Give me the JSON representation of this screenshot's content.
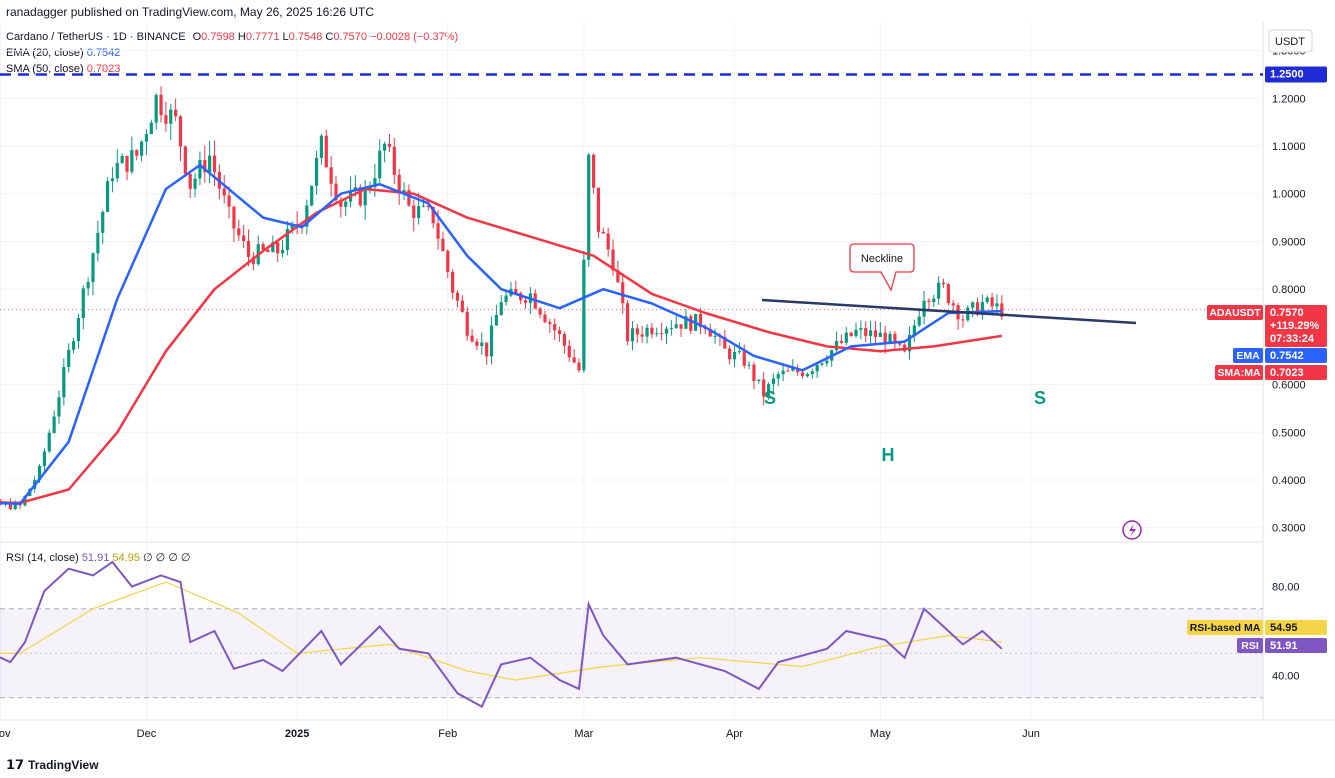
{
  "header": {
    "published": "ranadagger published on TradingView.com, May 26, 2025 16:26 UTC"
  },
  "legend": {
    "symbol": "Cardano / TetherUS · 1D · BINANCE",
    "o_label": "O",
    "o": "0.7598",
    "h_label": "H",
    "h": "0.7771",
    "l_label": "L",
    "l": "0.7548",
    "c_label": "C",
    "c": "0.7570",
    "change": "−0.0028 (−0.37%)",
    "ema_label": "EMA (20, close)",
    "ema_value": "0.7542",
    "sma_label": "SMA (50, close)",
    "sma_value": "0.7023",
    "rsi_label": "RSI (14, close)",
    "rsi_value": "51.91",
    "rsi_ma_value": "54.95",
    "rsi_extra": "∅ ∅ ∅ ∅"
  },
  "price_axis": {
    "currency": "USDT",
    "ticks": [
      "1.3000",
      "1.2000",
      "1.1000",
      "1.0000",
      "0.9000",
      "0.8000",
      "0.6000",
      "0.5000",
      "0.4000",
      "0.3000"
    ],
    "resistance_label": "1.2500",
    "badges": {
      "symbol": "ADAUSDT",
      "price": "0.7570",
      "change": "+119.29%",
      "countdown": "07:33:24",
      "ema_name": "EMA",
      "ema_value": "0.7542",
      "sma_name": "SMA:MA",
      "sma_value": "0.7023"
    }
  },
  "rsi_axis": {
    "ticks": [
      "80.00",
      "40.00"
    ],
    "ma_name": "RSI-based MA",
    "ma_value": "54.95",
    "rsi_name": "RSI",
    "rsi_value": "51.91"
  },
  "time_axis": [
    "Nov",
    "Dec",
    "2025",
    "Feb",
    "Mar",
    "Apr",
    "May",
    "Jun"
  ],
  "annotations": {
    "neckline": "Neckline",
    "left_shoulder": "S",
    "head": "H",
    "right_shoulder": "S"
  },
  "branding": "TradingView",
  "colors": {
    "up": "#089981",
    "down": "#f23645",
    "ema": "#2962ff",
    "sma": "#f23645",
    "rsi": "#7e57c2",
    "rsi_ma": "#f5d547",
    "neckline": "#2a3a66",
    "resistance": "#1f2bd6"
  },
  "chart_data": {
    "type": "candlestick",
    "title": "Cardano / TetherUS · 1D · BINANCE",
    "ylim": [
      0.27,
      1.36
    ],
    "x_ticks": [
      "Nov",
      "Dec",
      "2025",
      "Feb",
      "Mar",
      "Apr",
      "May",
      "Jun"
    ],
    "resistance_level": 1.25,
    "close_path": [
      {
        "date": "2024-10-20",
        "close": 0.355
      },
      {
        "date": "2024-10-28",
        "close": 0.35
      },
      {
        "date": "2024-11-05",
        "close": 0.345
      },
      {
        "date": "2024-11-09",
        "close": 0.42
      },
      {
        "date": "2024-11-13",
        "close": 0.58
      },
      {
        "date": "2024-11-17",
        "close": 0.75
      },
      {
        "date": "2024-11-21",
        "close": 0.92
      },
      {
        "date": "2024-11-24",
        "close": 1.05
      },
      {
        "date": "2024-11-29",
        "close": 1.08
      },
      {
        "date": "2024-12-03",
        "close": 1.2
      },
      {
        "date": "2024-12-07",
        "close": 1.15
      },
      {
        "date": "2024-12-10",
        "close": 1.02
      },
      {
        "date": "2024-12-14",
        "close": 1.08
      },
      {
        "date": "2024-12-18",
        "close": 0.95
      },
      {
        "date": "2024-12-22",
        "close": 0.87
      },
      {
        "date": "2024-12-28",
        "close": 0.88
      },
      {
        "date": "2025-01-02",
        "close": 0.95
      },
      {
        "date": "2025-01-06",
        "close": 1.1
      },
      {
        "date": "2025-01-10",
        "close": 0.98
      },
      {
        "date": "2025-01-15",
        "close": 1.0
      },
      {
        "date": "2025-01-19",
        "close": 1.1
      },
      {
        "date": "2025-01-24",
        "close": 0.97
      },
      {
        "date": "2025-01-29",
        "close": 0.95
      },
      {
        "date": "2025-02-02",
        "close": 0.8
      },
      {
        "date": "2025-02-05",
        "close": 0.72
      },
      {
        "date": "2025-02-09",
        "close": 0.67
      },
      {
        "date": "2025-02-12",
        "close": 0.78
      },
      {
        "date": "2025-02-18",
        "close": 0.79
      },
      {
        "date": "2025-02-24",
        "close": 0.7
      },
      {
        "date": "2025-02-28",
        "close": 0.63
      },
      {
        "date": "2025-03-02",
        "close": 1.07
      },
      {
        "date": "2025-03-04",
        "close": 0.93
      },
      {
        "date": "2025-03-07",
        "close": 0.86
      },
      {
        "date": "2025-03-10",
        "close": 0.7
      },
      {
        "date": "2025-03-15",
        "close": 0.72
      },
      {
        "date": "2025-03-20",
        "close": 0.73
      },
      {
        "date": "2025-03-26",
        "close": 0.73
      },
      {
        "date": "2025-03-30",
        "close": 0.67
      },
      {
        "date": "2025-04-03",
        "close": 0.65
      },
      {
        "date": "2025-04-07",
        "close": 0.58
      },
      {
        "date": "2025-04-10",
        "close": 0.62
      },
      {
        "date": "2025-04-16",
        "close": 0.63
      },
      {
        "date": "2025-04-22",
        "close": 0.68
      },
      {
        "date": "2025-04-26",
        "close": 0.71
      },
      {
        "date": "2025-05-02",
        "close": 0.7
      },
      {
        "date": "2025-05-06",
        "close": 0.66
      },
      {
        "date": "2025-05-10",
        "close": 0.79
      },
      {
        "date": "2025-05-14",
        "close": 0.8
      },
      {
        "date": "2025-05-18",
        "close": 0.74
      },
      {
        "date": "2025-05-22",
        "close": 0.77
      },
      {
        "date": "2025-05-26",
        "close": 0.757
      }
    ],
    "ema_path": [
      {
        "date": "2024-10-20",
        "value": 0.355
      },
      {
        "date": "2024-11-05",
        "value": 0.35
      },
      {
        "date": "2024-11-15",
        "value": 0.48
      },
      {
        "date": "2024-11-25",
        "value": 0.78
      },
      {
        "date": "2024-12-05",
        "value": 1.01
      },
      {
        "date": "2024-12-12",
        "value": 1.06
      },
      {
        "date": "2024-12-25",
        "value": 0.95
      },
      {
        "date": "2025-01-02",
        "value": 0.93
      },
      {
        "date": "2025-01-10",
        "value": 1.0
      },
      {
        "date": "2025-01-18",
        "value": 1.02
      },
      {
        "date": "2025-01-28",
        "value": 0.98
      },
      {
        "date": "2025-02-05",
        "value": 0.87
      },
      {
        "date": "2025-02-12",
        "value": 0.8
      },
      {
        "date": "2025-02-24",
        "value": 0.76
      },
      {
        "date": "2025-03-05",
        "value": 0.8
      },
      {
        "date": "2025-03-15",
        "value": 0.77
      },
      {
        "date": "2025-03-26",
        "value": 0.72
      },
      {
        "date": "2025-04-05",
        "value": 0.66
      },
      {
        "date": "2025-04-15",
        "value": 0.63
      },
      {
        "date": "2025-04-25",
        "value": 0.68
      },
      {
        "date": "2025-05-06",
        "value": 0.69
      },
      {
        "date": "2025-05-15",
        "value": 0.75
      },
      {
        "date": "2025-05-26",
        "value": 0.754
      }
    ],
    "sma_path": [
      {
        "date": "2024-10-20",
        "value": 0.355
      },
      {
        "date": "2024-11-05",
        "value": 0.352
      },
      {
        "date": "2024-11-15",
        "value": 0.38
      },
      {
        "date": "2024-11-25",
        "value": 0.5
      },
      {
        "date": "2024-12-05",
        "value": 0.67
      },
      {
        "date": "2024-12-15",
        "value": 0.8
      },
      {
        "date": "2024-12-25",
        "value": 0.88
      },
      {
        "date": "2025-01-05",
        "value": 0.96
      },
      {
        "date": "2025-01-15",
        "value": 1.01
      },
      {
        "date": "2025-01-25",
        "value": 1.0
      },
      {
        "date": "2025-02-05",
        "value": 0.95
      },
      {
        "date": "2025-02-18",
        "value": 0.91
      },
      {
        "date": "2025-03-03",
        "value": 0.87
      },
      {
        "date": "2025-03-15",
        "value": 0.79
      },
      {
        "date": "2025-03-26",
        "value": 0.75
      },
      {
        "date": "2025-04-08",
        "value": 0.71
      },
      {
        "date": "2025-04-20",
        "value": 0.68
      },
      {
        "date": "2025-05-01",
        "value": 0.67
      },
      {
        "date": "2025-05-12",
        "value": 0.68
      },
      {
        "date": "2025-05-26",
        "value": 0.702
      }
    ],
    "rsi": {
      "levels": [
        70,
        30
      ],
      "ticks": [
        80,
        40
      ],
      "ylim": [
        20,
        100
      ],
      "path": [
        {
          "date": "2024-10-20",
          "value": 48
        },
        {
          "date": "2024-10-28",
          "value": 52
        },
        {
          "date": "2024-11-03",
          "value": 46
        },
        {
          "date": "2024-11-06",
          "value": 55
        },
        {
          "date": "2024-11-10",
          "value": 78
        },
        {
          "date": "2024-11-15",
          "value": 88
        },
        {
          "date": "2024-11-20",
          "value": 85
        },
        {
          "date": "2024-11-24",
          "value": 91
        },
        {
          "date": "2024-11-28",
          "value": 80
        },
        {
          "date": "2024-12-04",
          "value": 85
        },
        {
          "date": "2024-12-08",
          "value": 82
        },
        {
          "date": "2024-12-10",
          "value": 55
        },
        {
          "date": "2024-12-15",
          "value": 60
        },
        {
          "date": "2024-12-19",
          "value": 43
        },
        {
          "date": "2024-12-25",
          "value": 47
        },
        {
          "date": "2024-12-29",
          "value": 42
        },
        {
          "date": "2025-01-06",
          "value": 60
        },
        {
          "date": "2025-01-10",
          "value": 45
        },
        {
          "date": "2025-01-18",
          "value": 62
        },
        {
          "date": "2025-01-22",
          "value": 52
        },
        {
          "date": "2025-01-28",
          "value": 50
        },
        {
          "date": "2025-02-03",
          "value": 32
        },
        {
          "date": "2025-02-08",
          "value": 26
        },
        {
          "date": "2025-02-12",
          "value": 45
        },
        {
          "date": "2025-02-18",
          "value": 48
        },
        {
          "date": "2025-02-24",
          "value": 38
        },
        {
          "date": "2025-02-28",
          "value": 34
        },
        {
          "date": "2025-03-02",
          "value": 72
        },
        {
          "date": "2025-03-05",
          "value": 58
        },
        {
          "date": "2025-03-10",
          "value": 45
        },
        {
          "date": "2025-03-20",
          "value": 48
        },
        {
          "date": "2025-03-30",
          "value": 42
        },
        {
          "date": "2025-04-06",
          "value": 34
        },
        {
          "date": "2025-04-10",
          "value": 46
        },
        {
          "date": "2025-04-20",
          "value": 52
        },
        {
          "date": "2025-04-24",
          "value": 60
        },
        {
          "date": "2025-05-02",
          "value": 56
        },
        {
          "date": "2025-05-06",
          "value": 48
        },
        {
          "date": "2025-05-10",
          "value": 70
        },
        {
          "date": "2025-05-14",
          "value": 62
        },
        {
          "date": "2025-05-18",
          "value": 54
        },
        {
          "date": "2025-05-22",
          "value": 60
        },
        {
          "date": "2025-05-26",
          "value": 52
        }
      ],
      "ma_path": [
        {
          "date": "2024-10-20",
          "value": 50
        },
        {
          "date": "2024-11-05",
          "value": 50
        },
        {
          "date": "2024-11-20",
          "value": 70
        },
        {
          "date": "2024-12-05",
          "value": 82
        },
        {
          "date": "2024-12-20",
          "value": 68
        },
        {
          "date": "2025-01-01",
          "value": 50
        },
        {
          "date": "2025-01-20",
          "value": 54
        },
        {
          "date": "2025-02-05",
          "value": 42
        },
        {
          "date": "2025-02-15",
          "value": 38
        },
        {
          "date": "2025-03-05",
          "value": 44
        },
        {
          "date": "2025-03-25",
          "value": 48
        },
        {
          "date": "2025-04-15",
          "value": 44
        },
        {
          "date": "2025-05-01",
          "value": 53
        },
        {
          "date": "2025-05-15",
          "value": 58
        },
        {
          "date": "2025-05-26",
          "value": 55
        }
      ]
    }
  }
}
